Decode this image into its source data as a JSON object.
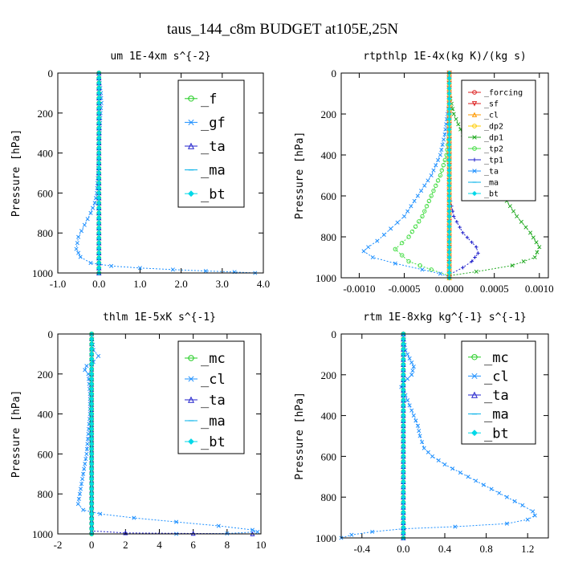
{
  "figure": {
    "title": "taus_144_c8m  BUDGET at105E,25N"
  },
  "colors": {
    "green": "#22cc22",
    "blue": "#1e90ff",
    "navy": "#2222cc",
    "cyan": "#00d8e8",
    "red": "#dd2222",
    "orange": "#ff9900",
    "yellow": "#ffcc00"
  },
  "chart_data": [
    {
      "type": "line",
      "title": "um  1E-4xm s^{-2}",
      "xlabel": "",
      "ylabel": "Pressure [hPa]",
      "xlim": [
        -1.0,
        4.0
      ],
      "ylim": [
        1000,
        0
      ],
      "xticks": [
        -1.0,
        0.0,
        1.0,
        2.0,
        3.0,
        4.0
      ],
      "xtick_labels": [
        "-1.0",
        "0.0",
        "1.0",
        "2.0",
        "3.0",
        "4.0"
      ],
      "yticks": [
        0,
        200,
        400,
        600,
        800,
        1000
      ],
      "legend_position": "top-right",
      "series": [
        {
          "name": "_f",
          "color": "#22cc22",
          "marker": "circle",
          "x": [
            0,
            0
          ],
          "y": [
            0,
            1000
          ]
        },
        {
          "name": "_gf",
          "color": "#1e90ff",
          "marker": "x",
          "x": [
            0.0,
            0.02,
            0.05,
            0.06,
            0.04,
            0.02,
            0.0,
            -0.02,
            -0.05,
            -0.1,
            -0.2,
            -0.35,
            -0.5,
            -0.55,
            -0.45,
            -0.2,
            0.3,
            1.0,
            1.8,
            2.6,
            3.3,
            3.8
          ],
          "y": [
            0,
            50,
            100,
            150,
            200,
            300,
            400,
            500,
            600,
            650,
            700,
            760,
            820,
            880,
            920,
            950,
            965,
            975,
            983,
            990,
            995,
            1000
          ]
        },
        {
          "name": "_ta",
          "color": "#2222cc",
          "marker": "triangle",
          "x": [
            0,
            0
          ],
          "y": [
            0,
            1000
          ]
        },
        {
          "name": "_ma",
          "color": "#00b0e8",
          "marker": "dash",
          "x": [
            0,
            0
          ],
          "y": [
            0,
            1000
          ]
        },
        {
          "name": "_bt",
          "color": "#00d8e8",
          "marker": "diamond",
          "x": [
            0,
            0
          ],
          "y": [
            0,
            1000
          ]
        }
      ]
    },
    {
      "type": "line",
      "title": "rtpthlp  1E-4x(kg K)/(kg s)",
      "xlabel": "",
      "ylabel": "Pressure [hPa]",
      "xlim": [
        -0.0012,
        0.0011
      ],
      "ylim": [
        1000,
        0
      ],
      "xticks": [
        -0.001,
        -0.0005,
        0.0,
        0.0005,
        0.001
      ],
      "xtick_labels": [
        "-0.0010",
        "-0.0005",
        "0.0000",
        "0.0005",
        "0.0010"
      ],
      "yticks": [
        0,
        200,
        400,
        600,
        800,
        1000
      ],
      "legend_position": "top-right",
      "series": [
        {
          "name": "_forcing",
          "color": "#dd2222",
          "marker": "circle",
          "x": [
            0,
            0
          ],
          "y": [
            0,
            1000
          ]
        },
        {
          "name": "_sf",
          "color": "#dd2222",
          "marker": "triangle-down",
          "x": [
            0,
            0
          ],
          "y": [
            0,
            1000
          ]
        },
        {
          "name": "_cl",
          "color": "#ff9900",
          "marker": "triangle",
          "x": [
            0,
            0
          ],
          "y": [
            0,
            1000
          ]
        },
        {
          "name": "_dp2",
          "color": "#ffcc00",
          "marker": "circle",
          "x": [
            0,
            0
          ],
          "y": [
            0,
            1000
          ]
        },
        {
          "name": "_dp1",
          "color": "#22aa22",
          "marker": "x",
          "x": [
            0.0,
            5e-05,
            0.00015,
            0.0003,
            0.00045,
            0.0006,
            0.00075,
            0.0009,
            0.001,
            0.00095,
            0.0007,
            0.0003,
            0.0
          ],
          "y": [
            100,
            200,
            300,
            400,
            500,
            600,
            700,
            780,
            850,
            900,
            940,
            970,
            990
          ]
        },
        {
          "name": "_tp2",
          "color": "#44dd44",
          "marker": "circle",
          "x": [
            0.0,
            -3e-05,
            -0.0001,
            -0.0002,
            -0.0003,
            -0.00045,
            -0.0006,
            -0.00045,
            -0.0002,
            0.0
          ],
          "y": [
            300,
            400,
            500,
            600,
            700,
            800,
            860,
            920,
            960,
            990
          ]
        },
        {
          "name": "_tp1",
          "color": "#2222cc",
          "marker": "plus",
          "x": [
            0.0,
            5e-05,
            0.00015,
            0.0003,
            0.00032,
            0.00025,
            0.00015,
            0.0
          ],
          "y": [
            600,
            700,
            780,
            850,
            880,
            920,
            950,
            985
          ]
        },
        {
          "name": "_ta",
          "color": "#1e90ff",
          "marker": "x",
          "x": [
            0.0,
            -2e-05,
            -5e-05,
            -0.0001,
            -0.0002,
            -0.00035,
            -0.0005,
            -0.00065,
            -0.0008,
            -0.0009,
            -0.00095,
            -0.00085,
            -0.0006,
            -0.0003,
            -0.0001,
            0.0
          ],
          "y": [
            150,
            200,
            300,
            400,
            500,
            600,
            700,
            760,
            820,
            850,
            870,
            900,
            930,
            960,
            980,
            995
          ]
        },
        {
          "name": "_ma",
          "color": "#00b0e8",
          "marker": "dash",
          "x": [
            0,
            0
          ],
          "y": [
            0,
            1000
          ]
        },
        {
          "name": "_bt",
          "color": "#00d8e8",
          "marker": "diamond",
          "x": [
            0,
            0
          ],
          "y": [
            0,
            1000
          ]
        }
      ]
    },
    {
      "type": "line",
      "title": "thlm  1E-5xK s^{-1}",
      "xlabel": "",
      "ylabel": "Pressure [hPa]",
      "xlim": [
        -2,
        10
      ],
      "ylim": [
        1000,
        0
      ],
      "xticks": [
        -2,
        0,
        2,
        4,
        6,
        8,
        10
      ],
      "xtick_labels": [
        "-2",
        "0",
        "2",
        "4",
        "6",
        "8",
        "10"
      ],
      "yticks": [
        0,
        200,
        400,
        600,
        800,
        1000
      ],
      "legend_position": "top-right",
      "series": [
        {
          "name": "_mc",
          "color": "#22cc22",
          "marker": "circle",
          "x": [
            0,
            0
          ],
          "y": [
            0,
            1000
          ]
        },
        {
          "name": "_cl",
          "color": "#1e90ff",
          "marker": "x",
          "x": [
            0.0,
            0.1,
            0.4,
            0.1,
            -0.3,
            -0.4,
            -0.2,
            -0.1,
            -0.1,
            -0.2,
            -0.3,
            -0.4,
            -0.5,
            -0.6,
            -0.7,
            -0.8,
            -0.5,
            0.5,
            2.5,
            5.0,
            7.5,
            9.5,
            9.8,
            8.0,
            5.0
          ],
          "y": [
            0,
            80,
            110,
            140,
            160,
            180,
            200,
            300,
            400,
            500,
            600,
            650,
            700,
            750,
            800,
            850,
            880,
            900,
            920,
            940,
            960,
            980,
            990,
            998,
            1000
          ]
        },
        {
          "name": "_ta",
          "color": "#2222cc",
          "marker": "triangle",
          "x": [
            0.0,
            0.0,
            2.0,
            6.0,
            9.5
          ],
          "y": [
            0,
            985,
            995,
            998,
            1000
          ]
        },
        {
          "name": "_ma",
          "color": "#00b0e8",
          "marker": "dash",
          "x": [
            0,
            0
          ],
          "y": [
            0,
            1000
          ]
        },
        {
          "name": "_bt",
          "color": "#00d8e8",
          "marker": "diamond",
          "x": [
            0,
            0
          ],
          "y": [
            0,
            1000
          ]
        }
      ]
    },
    {
      "type": "line",
      "title": "rtm  1E-8xkg kg^{-1} s^{-1}",
      "xlabel": "",
      "ylabel": "Pressure [hPa]",
      "xlim": [
        -0.6,
        1.4
      ],
      "ylim": [
        1000,
        0
      ],
      "xticks": [
        -0.4,
        0.0,
        0.4,
        0.8,
        1.2
      ],
      "xtick_labels": [
        "-0.4",
        "0.0",
        "0.4",
        "0.8",
        "1.2"
      ],
      "yticks": [
        0,
        200,
        400,
        600,
        800,
        1000
      ],
      "legend_position": "top-right",
      "series": [
        {
          "name": "_mc",
          "color": "#22cc22",
          "marker": "circle",
          "x": [
            0,
            0
          ],
          "y": [
            0,
            1000
          ]
        },
        {
          "name": "_cl",
          "color": "#1e90ff",
          "marker": "x",
          "x": [
            0.0,
            0.02,
            0.06,
            0.1,
            0.08,
            0.0,
            -0.02,
            0.02,
            0.06,
            0.1,
            0.14,
            0.16,
            0.2,
            0.28,
            0.4,
            0.55,
            0.7,
            0.85,
            1.0,
            1.15,
            1.25,
            1.27,
            1.2,
            1.0,
            0.5,
            0.0,
            -0.3,
            -0.5,
            -0.6
          ],
          "y": [
            0,
            80,
            120,
            160,
            200,
            240,
            260,
            300,
            350,
            400,
            450,
            500,
            560,
            600,
            640,
            680,
            720,
            760,
            800,
            840,
            870,
            890,
            910,
            930,
            945,
            955,
            970,
            985,
            1000
          ]
        },
        {
          "name": "_ta",
          "color": "#2222cc",
          "marker": "triangle",
          "x": [
            0,
            0
          ],
          "y": [
            0,
            1000
          ]
        },
        {
          "name": "_ma",
          "color": "#00b0e8",
          "marker": "dash",
          "x": [
            0,
            0
          ],
          "y": [
            0,
            1000
          ]
        },
        {
          "name": "_bt",
          "color": "#00d8e8",
          "marker": "diamond",
          "x": [
            0,
            0
          ],
          "y": [
            0,
            1000
          ]
        }
      ]
    }
  ]
}
